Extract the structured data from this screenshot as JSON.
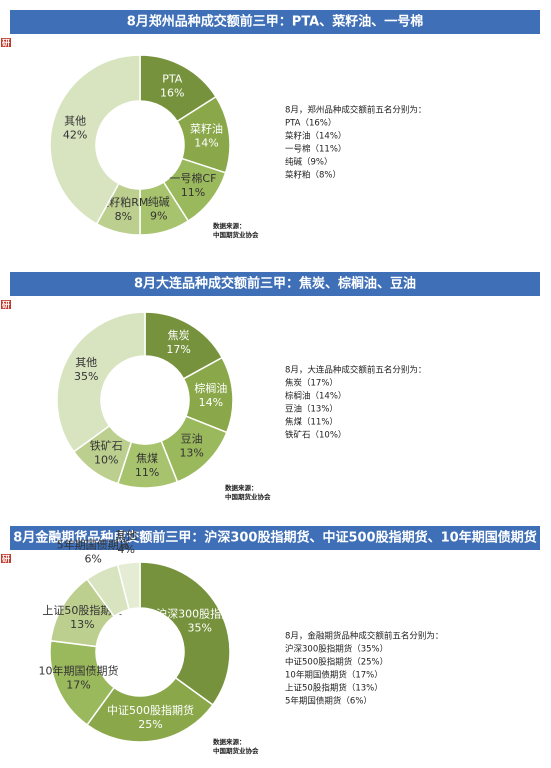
{
  "chart_data": [
    {
      "type": "donut",
      "badge": "研",
      "title": "8月郑州品种成交额前三甲：PTA、菜籽油、一号棉",
      "categories": [
        "PTA",
        "菜籽油",
        "一号棉CF",
        "纯碱",
        "菜籽粕RM",
        "其他"
      ],
      "values": [
        16,
        14,
        11,
        9,
        8,
        42
      ],
      "value_labels": [
        "16%",
        "14%",
        "11%",
        "9%",
        "8%",
        "42%"
      ],
      "colors": [
        "#76923c",
        "#8aa84a",
        "#9ab85c",
        "#a8c36e",
        "#bccf8e",
        "#d8e4c0"
      ],
      "notes_title": "8月，郑州品种成交额前五名分别为：",
      "notes": [
        "PTA（16%）",
        "菜籽油（14%）",
        "一号棉（11%）",
        "纯碱（9%）",
        "菜籽粕（8%）"
      ],
      "source": [
        "数据来源：",
        "中国期货业协会"
      ]
    },
    {
      "type": "donut",
      "badge": "研",
      "title": "8月大连品种成交额前三甲：焦炭、棕榈油、豆油",
      "categories": [
        "焦炭",
        "棕榈油",
        "豆油",
        "焦煤",
        "铁矿石",
        "其他"
      ],
      "values": [
        17,
        14,
        13,
        11,
        10,
        35
      ],
      "value_labels": [
        "17%",
        "14%",
        "13%",
        "11%",
        "10%",
        "35%"
      ],
      "colors": [
        "#76923c",
        "#8aa84a",
        "#9ab85c",
        "#a8c36e",
        "#bccf8e",
        "#d8e4c0"
      ],
      "notes_title": "8月，大连品种成交额前五名分别为：",
      "notes": [
        "焦炭（17%）",
        "棕榈油（14%）",
        "豆油（13%）",
        "焦煤（11%）",
        "铁矿石（10%）"
      ],
      "source": [
        "数据来源：",
        "中国期货业协会"
      ]
    },
    {
      "type": "donut",
      "badge": "研",
      "title": "8月金融期货品种成交额前三甲：沪深300股指期货、中证500股指期货、10年期国债期货",
      "categories": [
        "沪深300股指期货",
        "中证500股指期货",
        "10年期国债期货",
        "上证50股指期货",
        "5年期国债期货",
        "其他"
      ],
      "values": [
        35,
        25,
        17,
        13,
        6,
        4
      ],
      "value_labels": [
        "35%",
        "25%",
        "17%",
        "13%",
        "6%",
        "4%"
      ],
      "colors": [
        "#76923c",
        "#8aa84a",
        "#9ab85c",
        "#bccf8e",
        "#d8e4c0",
        "#e4ecd4"
      ],
      "notes_title": "8月，金融期货品种成交额前五名分别为：",
      "notes": [
        "沪深300股指期货（35%）",
        "中证500股指期货（25%）",
        "10年期国债期货（17%）",
        "上证50股指期货（13%）",
        "5年期国债期货（6%）"
      ],
      "source": [
        "数据来源：",
        "中国期货业协会"
      ]
    }
  ]
}
